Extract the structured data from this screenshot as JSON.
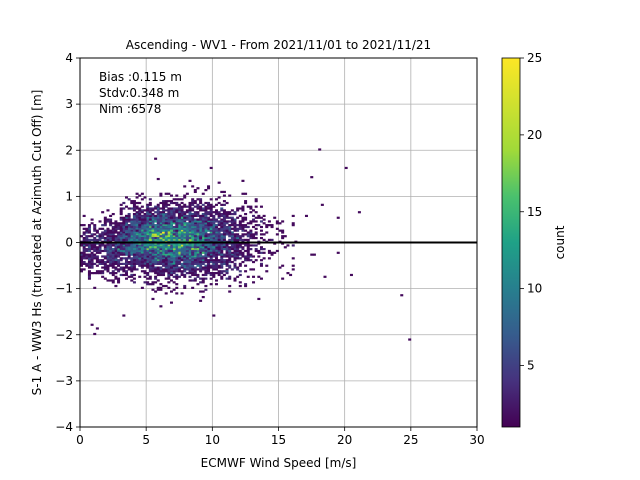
{
  "chart_data": {
    "type": "heatmap",
    "title": "Ascending - WV1 - From 2021/11/01 to 2021/11/21",
    "xlabel": "ECMWF Wind Speed [m/s]",
    "ylabel": "S-1 A - WW3 Hs (truncated at Azimuth Cut Off) [m]",
    "xlim": [
      0,
      30
    ],
    "ylim": [
      -4,
      4
    ],
    "xticks": [
      "0",
      "5",
      "10",
      "15",
      "20",
      "25",
      "30"
    ],
    "yticks": [
      "−4",
      "−3",
      "−2",
      "−1",
      "0",
      "1",
      "2",
      "3",
      "4"
    ],
    "grid": true,
    "annotations": [
      "Bias :0.115 m",
      "Stdv:0.348 m",
      "Nim :6578"
    ],
    "reference_line_y": 0,
    "colorbar": {
      "label": "count",
      "range": [
        1,
        25
      ],
      "ticks": [
        "5",
        "10",
        "15",
        "20",
        "25"
      ],
      "colormap": "viridis"
    },
    "density": {
      "center_x": 7.0,
      "center_y": 0.1,
      "spread_x": 3.6,
      "spread_y": 0.34,
      "peak_count": 25
    },
    "outliers": [
      {
        "x": 1.0,
        "y": -2.0
      },
      {
        "x": 1.3,
        "y": -1.85
      },
      {
        "x": 0.8,
        "y": -1.8
      },
      {
        "x": 18.0,
        "y": 2.0
      },
      {
        "x": 20.0,
        "y": 1.6
      },
      {
        "x": 24.3,
        "y": -1.15
      },
      {
        "x": 24.8,
        "y": -2.1
      },
      {
        "x": 21.0,
        "y": 0.65
      },
      {
        "x": 19.5,
        "y": 0.55
      },
      {
        "x": 17.5,
        "y": 1.4
      },
      {
        "x": 5.8,
        "y": 1.8
      },
      {
        "x": 9.8,
        "y": 1.6
      },
      {
        "x": 3.3,
        "y": -1.6
      },
      {
        "x": 6.8,
        "y": -1.3
      },
      {
        "x": 16.2,
        "y": -0.6
      },
      {
        "x": 18.3,
        "y": 0.8
      }
    ],
    "colors": {
      "line": "#000000",
      "grid": "#b0b0b0"
    }
  }
}
